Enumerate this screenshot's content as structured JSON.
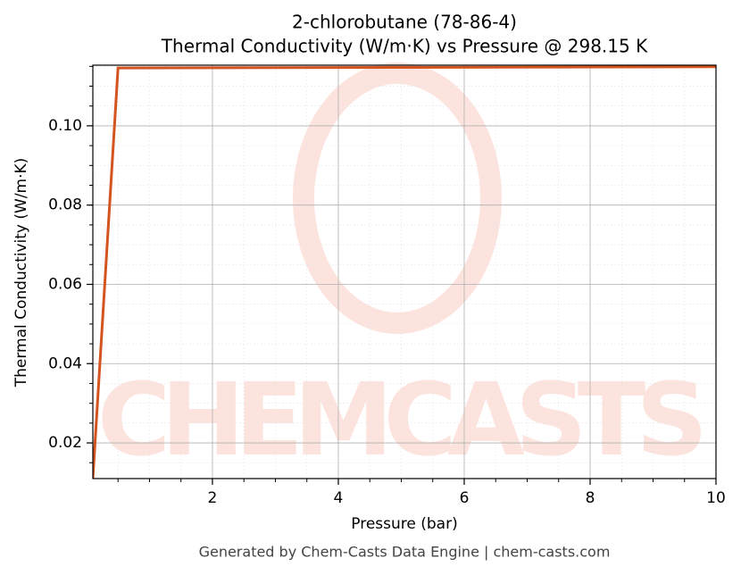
{
  "chart_data": {
    "type": "line",
    "title": "2-chlorobutane (78-86-4)",
    "subtitle": "Thermal Conductivity (W/m·K) vs Pressure @ 298.15 K",
    "x_label": "Pressure (bar)",
    "y_label": "Thermal Conductivity (W/m·K)",
    "watermark": "CHEMCASTS",
    "footer": "Generated by Chem-Casts Data Engine | chem-casts.com",
    "x": [
      0.1,
      0.5,
      10
    ],
    "series": [
      {
        "name": "Thermal Conductivity",
        "color": "#d4541f",
        "values": [
          0.011,
          0.1146,
          0.1149
        ]
      }
    ],
    "xlim": [
      0.1,
      10
    ],
    "xticks": [
      2,
      4,
      6,
      8,
      10
    ],
    "ylim": [
      0.011,
      0.1153
    ],
    "yticks": [
      0.02,
      0.04,
      0.06,
      0.08,
      {
        "value": 0.1,
        "label": "0.10"
      }
    ],
    "grid": true
  }
}
